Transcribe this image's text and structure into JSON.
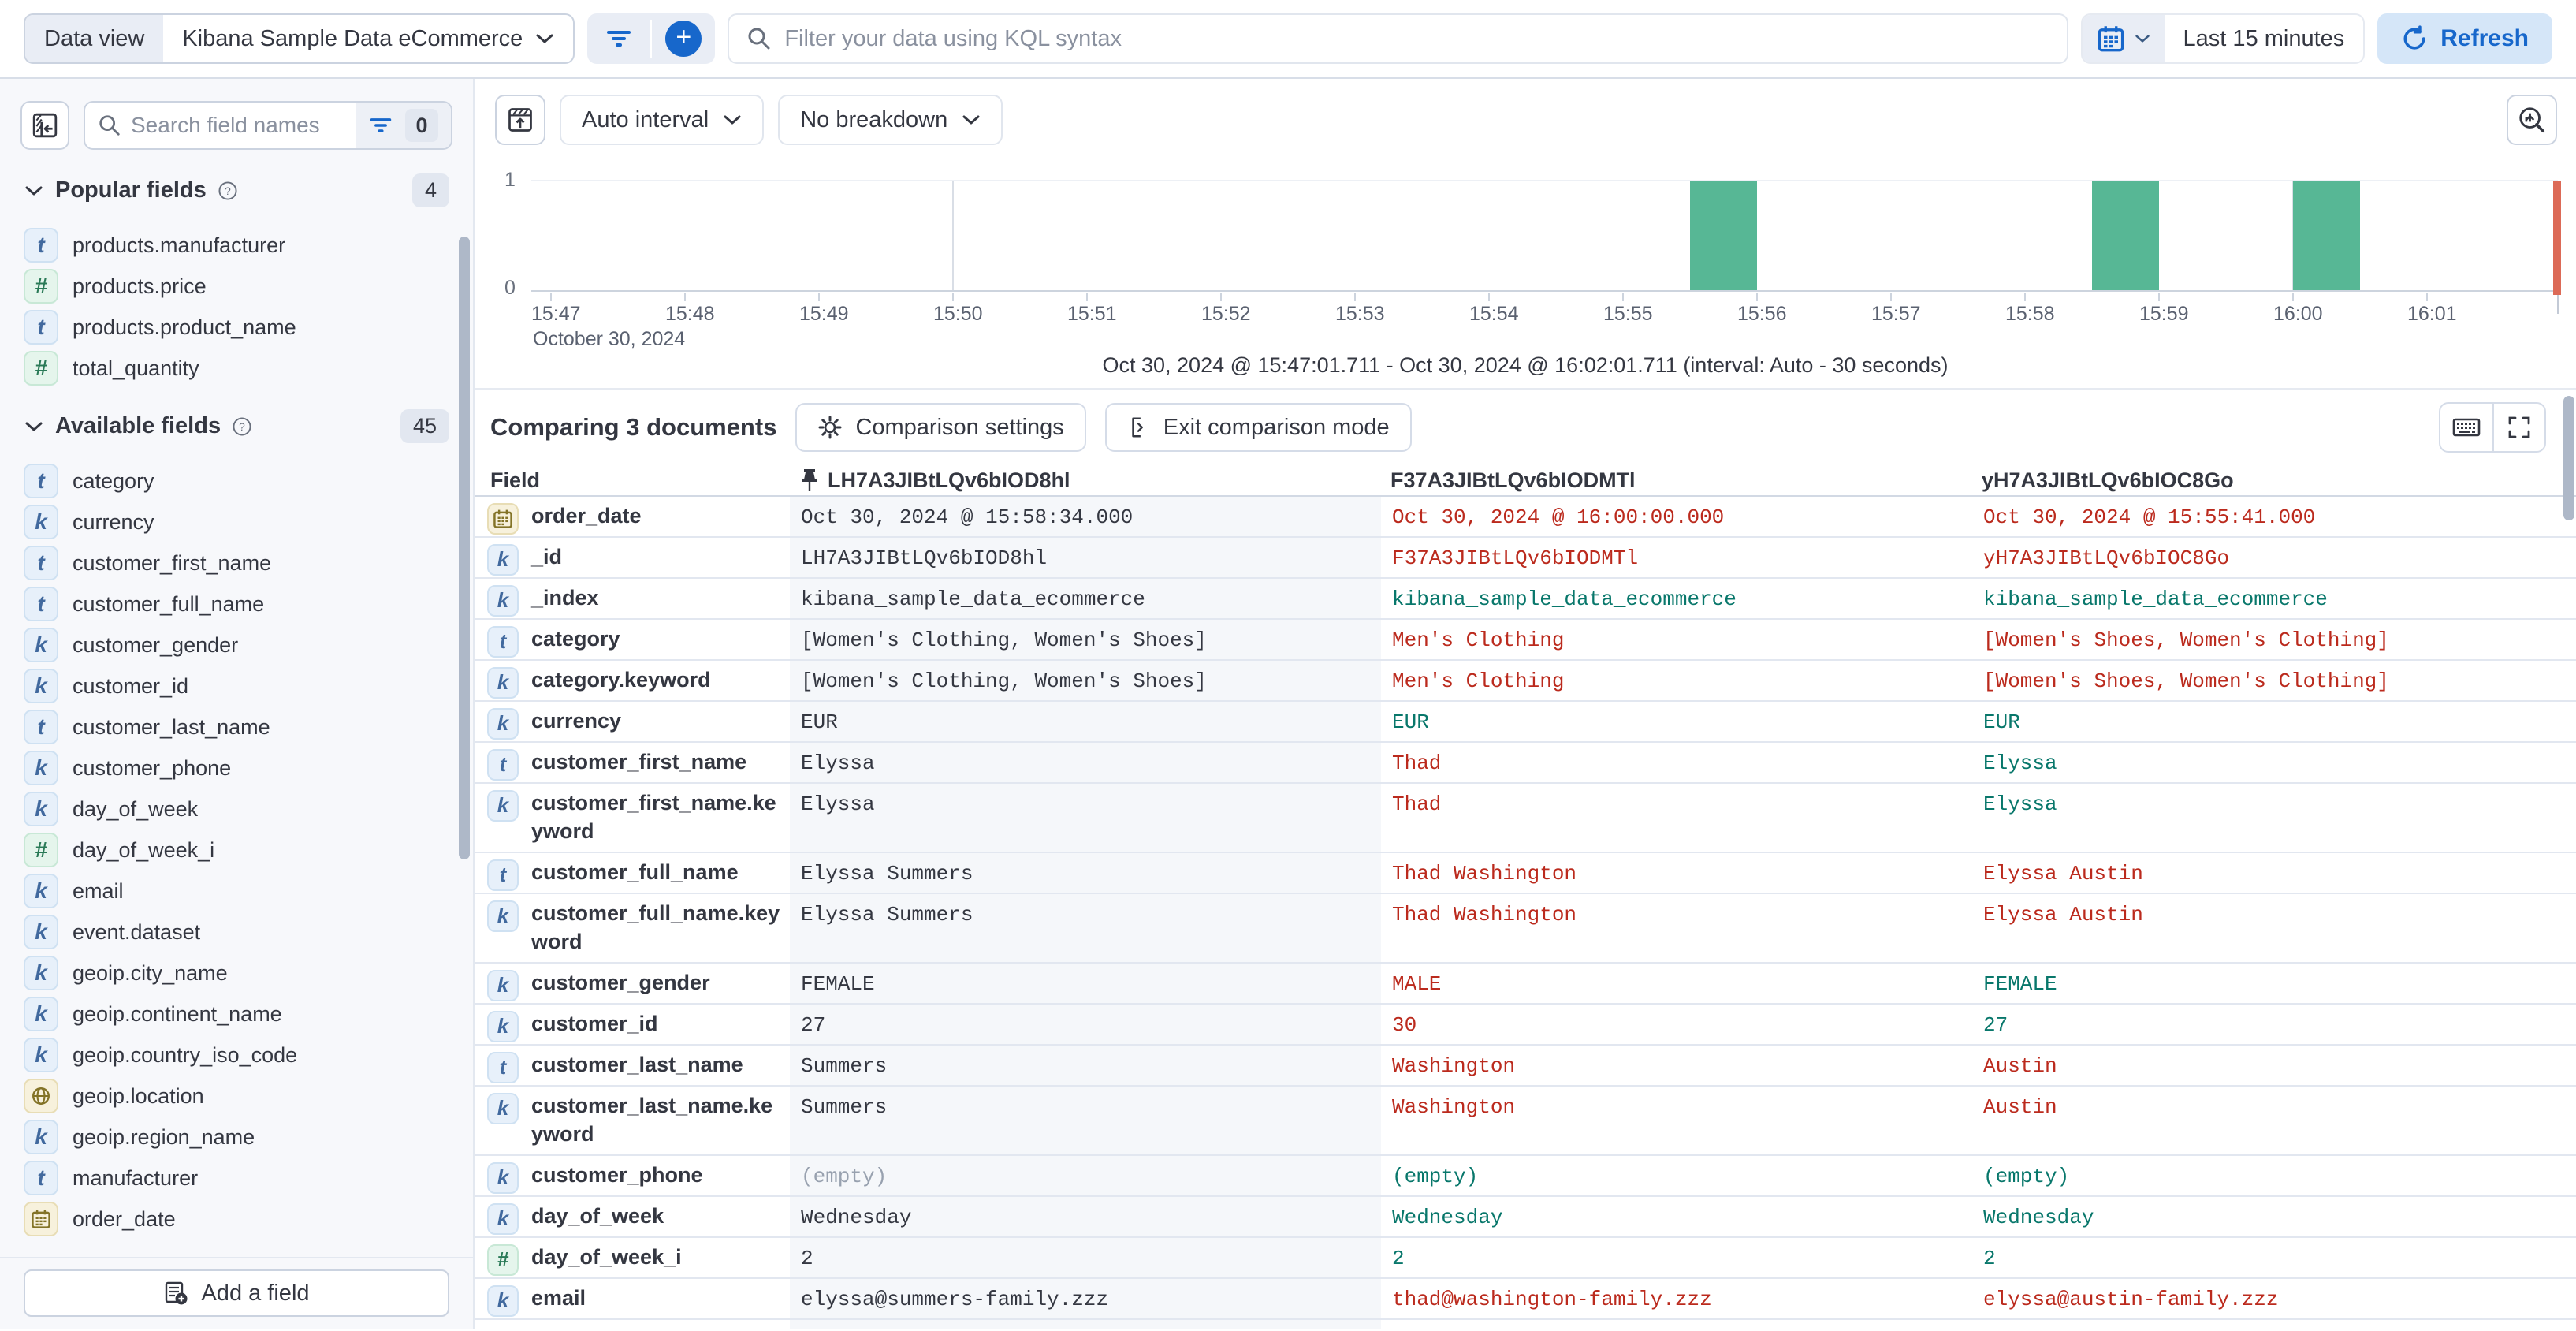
{
  "colors": {
    "accent": "#1767CB",
    "bar": "#57B795",
    "diff_removed": "#BB2A1D",
    "diff_match": "#08776B",
    "time_marker": "#DC6A57"
  },
  "topbar": {
    "data_view_label": "Data view",
    "data_view_value": "Kibana Sample Data eCommerce",
    "search_placeholder": "Filter your data using KQL syntax",
    "time_range": "Last 15 minutes",
    "refresh_label": "Refresh"
  },
  "sidebar": {
    "search_placeholder": "Search field names",
    "filter_count": "0",
    "popular": {
      "label": "Popular fields",
      "count": "4",
      "items": [
        {
          "type": "text",
          "name": "products.manufacturer"
        },
        {
          "type": "number",
          "name": "products.price"
        },
        {
          "type": "text",
          "name": "products.product_name"
        },
        {
          "type": "number",
          "name": "total_quantity"
        }
      ]
    },
    "available": {
      "label": "Available fields",
      "count": "45",
      "items": [
        {
          "type": "text",
          "name": "category"
        },
        {
          "type": "keyword",
          "name": "currency"
        },
        {
          "type": "text",
          "name": "customer_first_name"
        },
        {
          "type": "text",
          "name": "customer_full_name"
        },
        {
          "type": "keyword",
          "name": "customer_gender"
        },
        {
          "type": "keyword",
          "name": "customer_id"
        },
        {
          "type": "text",
          "name": "customer_last_name"
        },
        {
          "type": "keyword",
          "name": "customer_phone"
        },
        {
          "type": "keyword",
          "name": "day_of_week"
        },
        {
          "type": "number",
          "name": "day_of_week_i"
        },
        {
          "type": "keyword",
          "name": "email"
        },
        {
          "type": "keyword",
          "name": "event.dataset"
        },
        {
          "type": "keyword",
          "name": "geoip.city_name"
        },
        {
          "type": "keyword",
          "name": "geoip.continent_name"
        },
        {
          "type": "keyword",
          "name": "geoip.country_iso_code"
        },
        {
          "type": "geo",
          "name": "geoip.location"
        },
        {
          "type": "keyword",
          "name": "geoip.region_name"
        },
        {
          "type": "text",
          "name": "manufacturer"
        },
        {
          "type": "date",
          "name": "order_date"
        }
      ]
    },
    "add_field_label": "Add a field"
  },
  "controls": {
    "interval_label": "Auto interval",
    "breakdown_label": "No breakdown"
  },
  "chart_data": {
    "type": "bar",
    "x_ticks": [
      "15:47",
      "15:48",
      "15:49",
      "15:50",
      "15:51",
      "15:52",
      "15:53",
      "15:54",
      "15:55",
      "15:56",
      "15:57",
      "15:58",
      "15:59",
      "16:00",
      "16:01"
    ],
    "x_date_label": "October 30, 2024",
    "y_ticks": [
      "1",
      "0"
    ],
    "ylim": [
      0,
      1
    ],
    "interval_seconds": 30,
    "gridline_ticks": [
      "15:50",
      "16:00"
    ],
    "buckets": [
      {
        "time": "15:55:30",
        "offset_min": 8.5,
        "count": 1
      },
      {
        "time": "15:58:30",
        "offset_min": 11.5,
        "count": 1
      },
      {
        "time": "16:00:00",
        "offset_min": 13.0,
        "count": 1
      }
    ],
    "time_marker_offset_min": 15.0
  },
  "summary": {
    "range_text": "Oct 30, 2024 @ 15:47:01.711 - Oct 30, 2024 @ 16:02:01.711 (interval: Auto - 30 seconds)"
  },
  "compare": {
    "title": "Comparing 3 documents",
    "settings_label": "Comparison settings",
    "exit_label": "Exit comparison mode"
  },
  "table": {
    "field_header": "Field",
    "docs": [
      {
        "id": "LH7A3JIBtLQv6bIOD8hl",
        "pinned": true
      },
      {
        "id": "F37A3JIBtLQv6bIODMTl",
        "pinned": false
      },
      {
        "id": "yH7A3JIBtLQv6bIOC8Go",
        "pinned": false
      }
    ],
    "rows": [
      {
        "field": "order_date",
        "type": "date",
        "tall": false,
        "cells": [
          {
            "t": "Oct 30, 2024 @ 15:58:34.000",
            "c": "d"
          },
          {
            "t": "Oct 30, 2024 @ 16:00:00.000",
            "c": "r"
          },
          {
            "t": "Oct 30, 2024 @ 15:55:41.000",
            "c": "r"
          }
        ]
      },
      {
        "field": "_id",
        "type": "keyword",
        "tall": false,
        "cells": [
          {
            "t": "LH7A3JIBtLQv6bIOD8hl",
            "c": "d"
          },
          {
            "t": "F37A3JIBtLQv6bIODMTl",
            "c": "r"
          },
          {
            "t": "yH7A3JIBtLQv6bIOC8Go",
            "c": "r"
          }
        ]
      },
      {
        "field": "_index",
        "type": "keyword",
        "tall": false,
        "cells": [
          {
            "t": "kibana_sample_data_ecommerce",
            "c": "d"
          },
          {
            "t": "kibana_sample_data_ecommerce",
            "c": "g"
          },
          {
            "t": "kibana_sample_data_ecommerce",
            "c": "g"
          }
        ]
      },
      {
        "field": "category",
        "type": "text",
        "tall": false,
        "cells": [
          {
            "t": "[Women's Clothing, Women's Shoes]",
            "c": "d"
          },
          {
            "t": "Men's Clothing",
            "c": "r"
          },
          {
            "t": "[Women's Shoes, Women's Clothing]",
            "c": "r"
          }
        ]
      },
      {
        "field": "category.keyword",
        "type": "keyword",
        "tall": false,
        "cells": [
          {
            "t": "[Women's Clothing, Women's Shoes]",
            "c": "d"
          },
          {
            "t": "Men's Clothing",
            "c": "r"
          },
          {
            "t": "[Women's Shoes, Women's Clothing]",
            "c": "r"
          }
        ]
      },
      {
        "field": "currency",
        "type": "keyword",
        "tall": false,
        "cells": [
          {
            "t": "EUR",
            "c": "d"
          },
          {
            "t": "EUR",
            "c": "g"
          },
          {
            "t": "EUR",
            "c": "g"
          }
        ]
      },
      {
        "field": "customer_first_name",
        "type": "text",
        "tall": false,
        "cells": [
          {
            "t": "Elyssa",
            "c": "d"
          },
          {
            "t": "Thad",
            "c": "r"
          },
          {
            "t": "Elyssa",
            "c": "g"
          }
        ]
      },
      {
        "field": "customer_first_name.keyword",
        "type": "keyword",
        "tall": true,
        "cells": [
          {
            "t": "Elyssa",
            "c": "d"
          },
          {
            "t": "Thad",
            "c": "r"
          },
          {
            "t": "Elyssa",
            "c": "g"
          }
        ]
      },
      {
        "field": "customer_full_name",
        "type": "text",
        "tall": false,
        "cells": [
          {
            "t": "Elyssa Summers",
            "c": "d"
          },
          {
            "t": "Thad Washington",
            "c": "r"
          },
          {
            "t": "Elyssa Austin",
            "c": "r"
          }
        ]
      },
      {
        "field": "customer_full_name.keyword",
        "type": "keyword",
        "tall": true,
        "cells": [
          {
            "t": "Elyssa Summers",
            "c": "d"
          },
          {
            "t": "Thad Washington",
            "c": "r"
          },
          {
            "t": "Elyssa Austin",
            "c": "r"
          }
        ]
      },
      {
        "field": "customer_gender",
        "type": "keyword",
        "tall": false,
        "cells": [
          {
            "t": "FEMALE",
            "c": "d"
          },
          {
            "t": "MALE",
            "c": "r"
          },
          {
            "t": "FEMALE",
            "c": "g"
          }
        ]
      },
      {
        "field": "customer_id",
        "type": "keyword",
        "tall": false,
        "cells": [
          {
            "t": "27",
            "c": "d"
          },
          {
            "t": "30",
            "c": "r"
          },
          {
            "t": "27",
            "c": "g"
          }
        ]
      },
      {
        "field": "customer_last_name",
        "type": "text",
        "tall": false,
        "cells": [
          {
            "t": "Summers",
            "c": "d"
          },
          {
            "t": "Washington",
            "c": "r"
          },
          {
            "t": "Austin",
            "c": "r"
          }
        ]
      },
      {
        "field": "customer_last_name.keyword",
        "type": "keyword",
        "tall": true,
        "cells": [
          {
            "t": "Summers",
            "c": "d"
          },
          {
            "t": "Washington",
            "c": "r"
          },
          {
            "t": "Austin",
            "c": "r"
          }
        ]
      },
      {
        "field": "customer_phone",
        "type": "keyword",
        "tall": false,
        "cells": [
          {
            "t": "(empty)",
            "c": "e"
          },
          {
            "t": "(empty)",
            "c": "g"
          },
          {
            "t": "(empty)",
            "c": "g"
          }
        ]
      },
      {
        "field": "day_of_week",
        "type": "keyword",
        "tall": false,
        "cells": [
          {
            "t": "Wednesday",
            "c": "d"
          },
          {
            "t": "Wednesday",
            "c": "g"
          },
          {
            "t": "Wednesday",
            "c": "g"
          }
        ]
      },
      {
        "field": "day_of_week_i",
        "type": "number",
        "tall": false,
        "cells": [
          {
            "t": "2",
            "c": "d"
          },
          {
            "t": "2",
            "c": "g"
          },
          {
            "t": "2",
            "c": "g"
          }
        ]
      },
      {
        "field": "email",
        "type": "keyword",
        "tall": false,
        "cells": [
          {
            "t": "elyssa@summers-family.zzz",
            "c": "d"
          },
          {
            "t": "thad@washington-family.zzz",
            "c": "r"
          },
          {
            "t": "elyssa@austin-family.zzz",
            "c": "r"
          }
        ]
      }
    ]
  }
}
